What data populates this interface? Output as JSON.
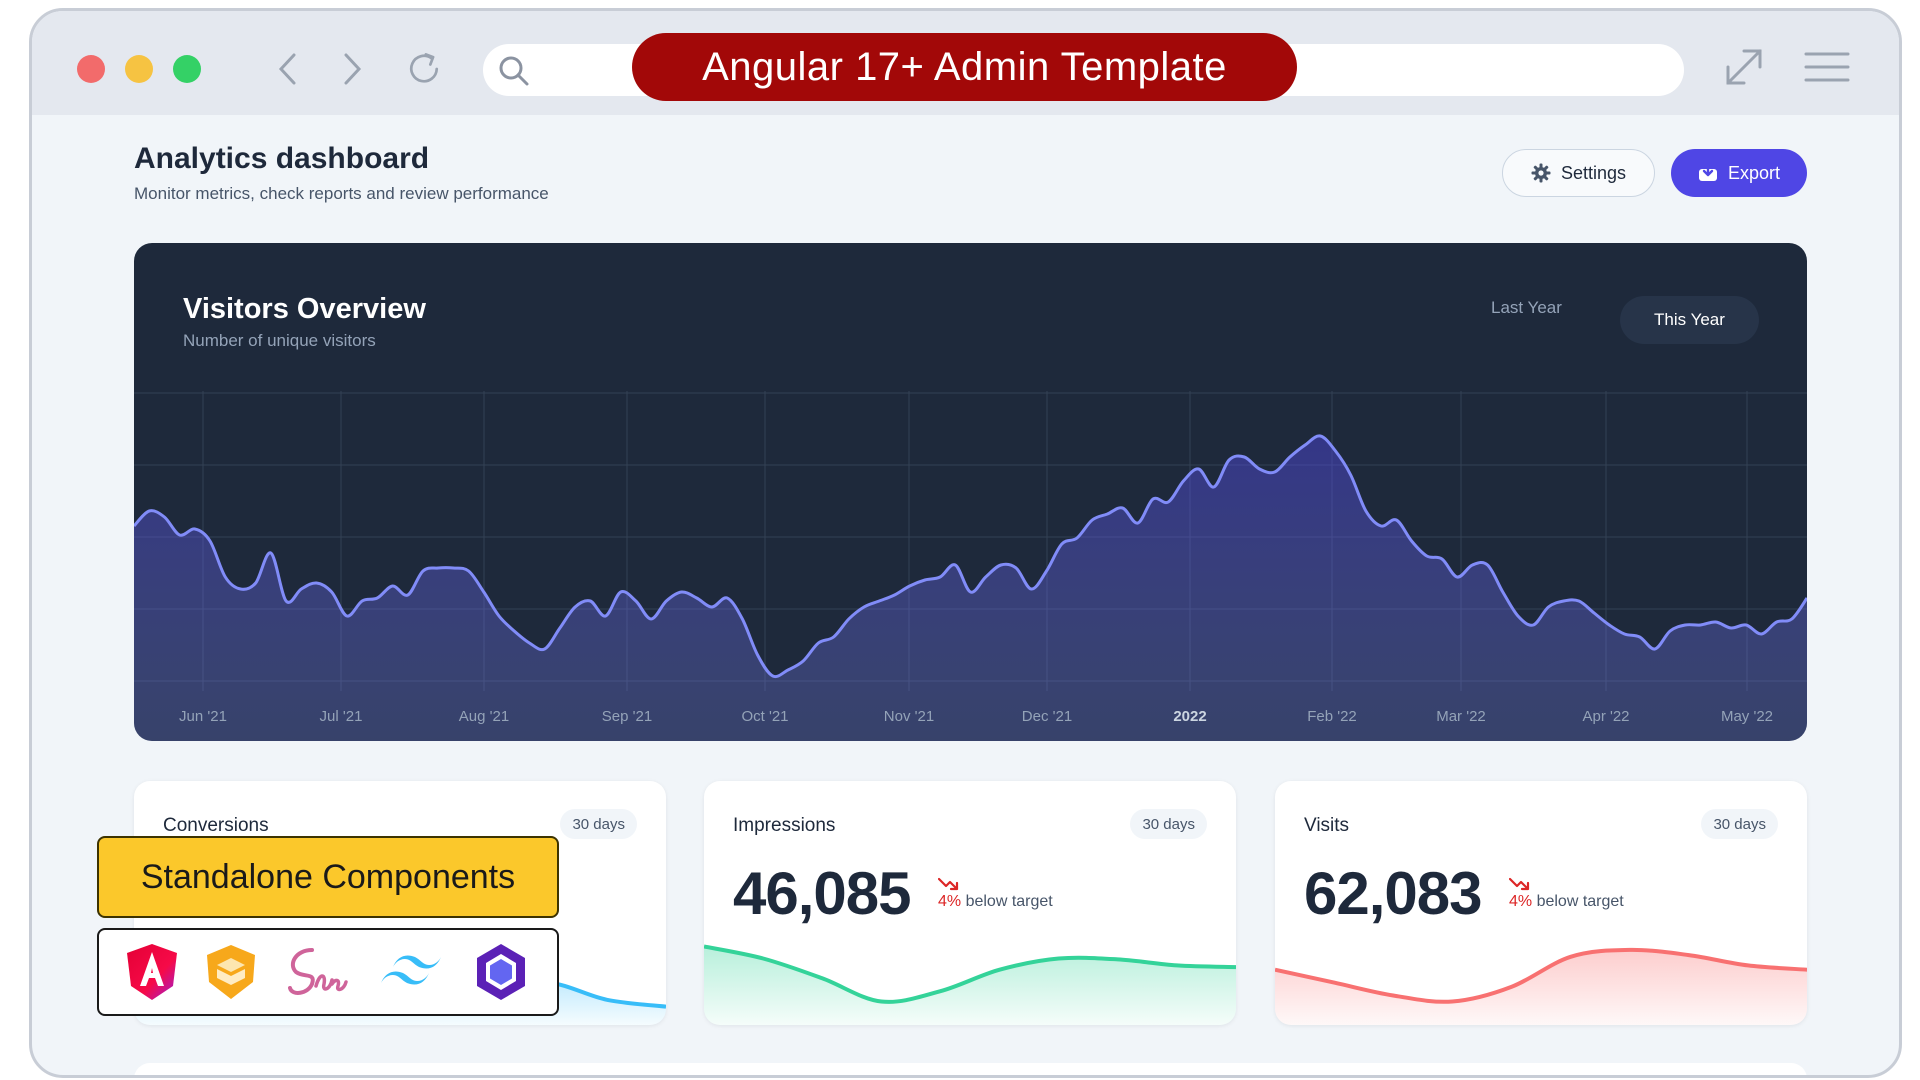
{
  "browser": {
    "title": "Angular 17+ Admin Template"
  },
  "header": {
    "title": "Analytics dashboard",
    "subtitle": "Monitor metrics, check reports and review performance",
    "settings_label": "Settings",
    "export_label": "Export"
  },
  "visitors": {
    "title": "Visitors Overview",
    "subtitle": "Number of unique visitors",
    "toggle_last": "Last Year",
    "toggle_this": "This Year",
    "accent": "#818cf8"
  },
  "chart_data": {
    "type": "area",
    "title": "Visitors Overview",
    "subtitle": "Number of unique visitors",
    "tick_labels": [
      "Jun '21",
      "Jul '21",
      "Aug '21",
      "Sep '21",
      "Oct '21",
      "Nov '21",
      "Dec '21",
      "2022",
      "Feb '22",
      "Mar '22",
      "Apr '22",
      "May '22"
    ],
    "x_range": [
      "2021-05-28",
      "2022-05-31"
    ],
    "grid": true,
    "y_ticks_shown": false,
    "series": [
      {
        "values": [
          0.55,
          0.6,
          0.58,
          0.52,
          0.54,
          0.5,
          0.38,
          0.34,
          0.36,
          0.46,
          0.3,
          0.34,
          0.36,
          0.33,
          0.25,
          0.3,
          0.31,
          0.35,
          0.32,
          0.4,
          0.41,
          0.41,
          0.4,
          0.33,
          0.25,
          0.2,
          0.16,
          0.14,
          0.21,
          0.28,
          0.3,
          0.25,
          0.33,
          0.3,
          0.24,
          0.3,
          0.33,
          0.31,
          0.28,
          0.31,
          0.24,
          0.12,
          0.05,
          0.07,
          0.1,
          0.16,
          0.18,
          0.24,
          0.28,
          0.3,
          0.32,
          0.35,
          0.37,
          0.38,
          0.42,
          0.33,
          0.38,
          0.42,
          0.41,
          0.34,
          0.4,
          0.49,
          0.51,
          0.57,
          0.59,
          0.61,
          0.56,
          0.64,
          0.63,
          0.7,
          0.74,
          0.68,
          0.77,
          0.78,
          0.74,
          0.73,
          0.78,
          0.82,
          0.85,
          0.8,
          0.72,
          0.6,
          0.55,
          0.57,
          0.5,
          0.45,
          0.44,
          0.38,
          0.42,
          0.42,
          0.33,
          0.25,
          0.22,
          0.28,
          0.3,
          0.3,
          0.26,
          0.22,
          0.19,
          0.18,
          0.14,
          0.2,
          0.22,
          0.22,
          0.23,
          0.21,
          0.22,
          0.19,
          0.23,
          0.24,
          0.31
        ]
      }
    ]
  },
  "stats": [
    {
      "label": "Conversions",
      "period": "30 days",
      "value": "",
      "trend_pct": "",
      "trend_text": "",
      "color": "#38bdf8",
      "curve": [
        0.3,
        0.5,
        0.25,
        0.45,
        0.5,
        0.35,
        0.3,
        0.4,
        0.2,
        0.12
      ]
    },
    {
      "label": "Impressions",
      "period": "30 days",
      "value": "46,085",
      "trend_pct": "4%",
      "trend_text": "below target",
      "color": "#34d399",
      "curve": [
        0.82,
        0.68,
        0.45,
        0.18,
        0.3,
        0.55,
        0.68,
        0.67,
        0.6,
        0.58
      ]
    },
    {
      "label": "Visits",
      "period": "30 days",
      "value": "62,083",
      "trend_pct": "4%",
      "trend_text": "below target",
      "color": "#f87171",
      "curve": [
        0.55,
        0.4,
        0.25,
        0.18,
        0.35,
        0.7,
        0.78,
        0.72,
        0.6,
        0.55
      ]
    }
  ],
  "overlay": {
    "headline": "Standalone Components",
    "logos": [
      "angular-logo",
      "ionic-shield-logo",
      "sass-logo",
      "tailwind-logo",
      "ngrx-hexagon-logo"
    ],
    "headline_color": "#fbc82b"
  }
}
